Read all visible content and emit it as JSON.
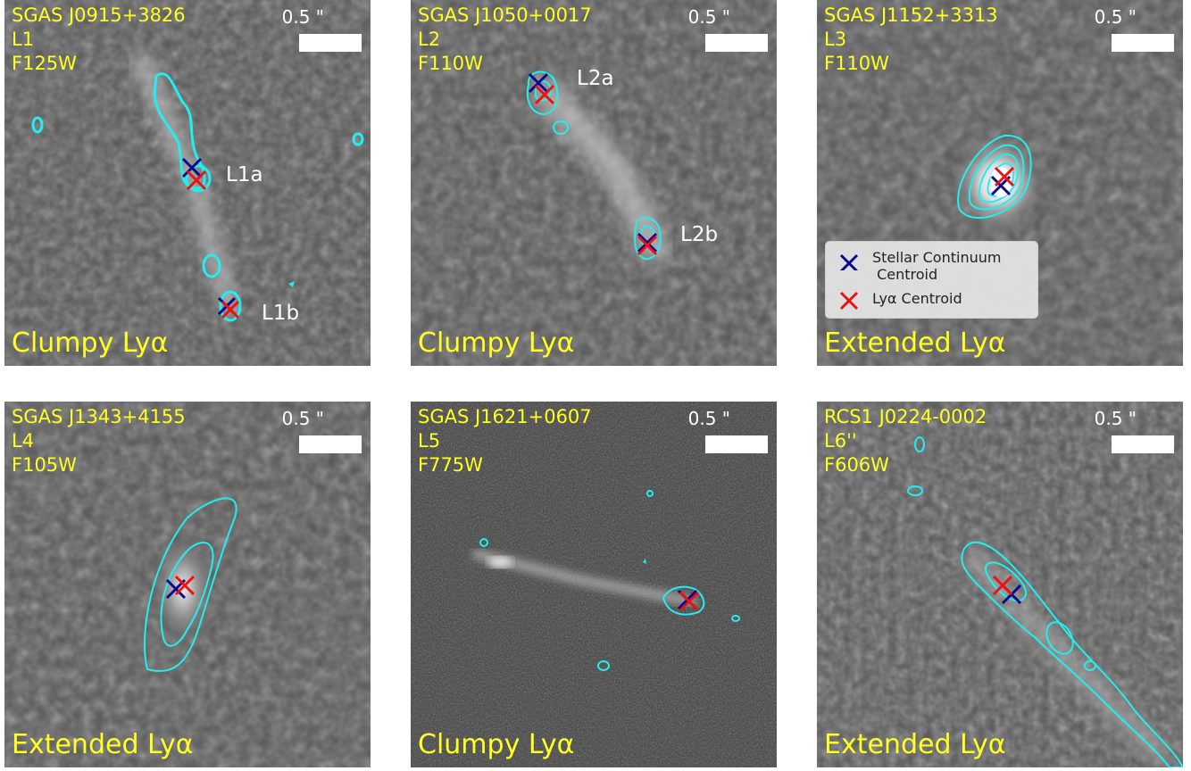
{
  "colors": {
    "label": "#ffff22",
    "contour": "#22eeee",
    "stellar": "#0a0a8a",
    "lya": "#ee1111"
  },
  "scale_label": "0.5 \"",
  "panels": [
    {
      "target": "SGAS J0915+3826",
      "lens": "L1",
      "filter": "F125W",
      "class": "Clumpy Lyα",
      "clumps": [
        "L1a",
        "L1b"
      ]
    },
    {
      "target": "SGAS J1050+0017",
      "lens": "L2",
      "filter": "F110W",
      "class": "Clumpy Lyα",
      "clumps": [
        "L2a",
        "L2b"
      ]
    },
    {
      "target": "SGAS J1152+3313",
      "lens": "L3",
      "filter": "F110W",
      "class": "Extended Lyα",
      "clumps": []
    },
    {
      "target": "SGAS J1343+4155",
      "lens": "L4",
      "filter": "F105W",
      "class": "Extended Lyα",
      "clumps": []
    },
    {
      "target": "SGAS J1621+0607",
      "lens": "L5",
      "filter": "F775W",
      "class": "Clumpy Lyα",
      "clumps": []
    },
    {
      "target": "RCS1 J0224-0002",
      "lens": "L6''",
      "filter": "F606W",
      "class": "Extended Lyα",
      "clumps": []
    }
  ],
  "legend": {
    "stellar": "Stellar Continuum\n Centroid",
    "lya": "Lyα Centroid"
  }
}
